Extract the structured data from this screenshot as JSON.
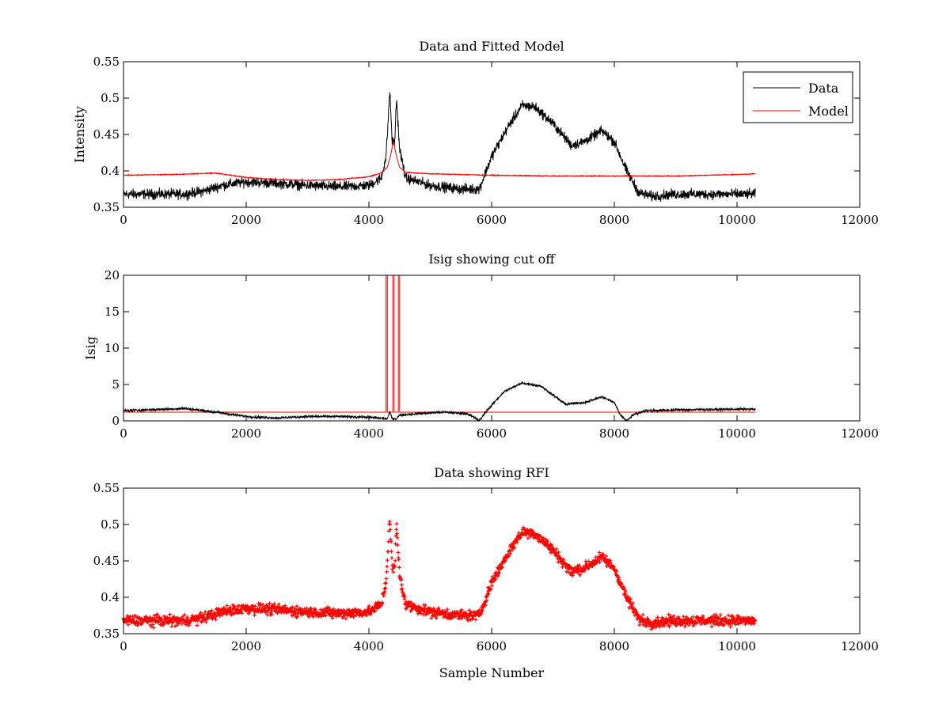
{
  "chart_data": [
    {
      "type": "line",
      "title": "Data and Fitted Model",
      "xlabel": "",
      "ylabel": "Intensity",
      "xlim": [
        0,
        12000
      ],
      "ylim": [
        0.35,
        0.55
      ],
      "xticks": [
        0,
        2000,
        4000,
        6000,
        8000,
        10000,
        12000
      ],
      "yticks": [
        0.35,
        0.4,
        0.45,
        0.5,
        0.55
      ],
      "grid": false,
      "legend_position": "top-right",
      "series": [
        {
          "name": "Data",
          "color": "#000000",
          "style": "line",
          "noise": 0.006,
          "x": [
            0,
            500,
            1000,
            1300,
            1600,
            2000,
            2500,
            3000,
            3500,
            4000,
            4200,
            4280,
            4340,
            4380,
            4420,
            4450,
            4500,
            4600,
            5000,
            5500,
            5800,
            6000,
            6300,
            6500,
            6700,
            7000,
            7300,
            7500,
            7800,
            8000,
            8200,
            8400,
            8600,
            9000,
            9500,
            10000,
            10300
          ],
          "y": [
            0.368,
            0.368,
            0.368,
            0.372,
            0.38,
            0.385,
            0.383,
            0.38,
            0.378,
            0.38,
            0.39,
            0.42,
            0.51,
            0.44,
            0.44,
            0.5,
            0.43,
            0.39,
            0.38,
            0.375,
            0.375,
            0.42,
            0.465,
            0.49,
            0.488,
            0.465,
            0.435,
            0.44,
            0.455,
            0.44,
            0.4,
            0.37,
            0.365,
            0.368,
            0.368,
            0.368,
            0.368
          ]
        },
        {
          "name": "Model",
          "color": "#ff0000",
          "style": "line",
          "noise": 0.0005,
          "x": [
            0,
            800,
            1500,
            2000,
            2500,
            3000,
            3500,
            4000,
            4200,
            4300,
            4350,
            4400,
            4450,
            4500,
            4600,
            5000,
            5500,
            6000,
            7000,
            8000,
            9000,
            10000,
            10300
          ],
          "y": [
            0.394,
            0.395,
            0.397,
            0.391,
            0.388,
            0.387,
            0.388,
            0.392,
            0.397,
            0.405,
            0.42,
            0.44,
            0.42,
            0.405,
            0.398,
            0.396,
            0.395,
            0.394,
            0.393,
            0.393,
            0.393,
            0.395,
            0.396
          ]
        }
      ]
    },
    {
      "type": "line",
      "title": "Isig showing cut off",
      "xlabel": "",
      "ylabel": "Isig",
      "xlim": [
        0,
        12000
      ],
      "ylim": [
        0,
        20
      ],
      "xticks": [
        0,
        2000,
        4000,
        6000,
        8000,
        10000,
        12000
      ],
      "yticks": [
        0,
        5,
        10,
        15,
        20
      ],
      "grid": false,
      "series": [
        {
          "color": "#ff0000",
          "style": "line",
          "noise": 0,
          "x": [
            0,
            4280,
            4280,
            4300,
            4300,
            4390,
            4390,
            4410,
            4410,
            4480,
            4480,
            4500,
            4500,
            10300
          ],
          "y": [
            1.2,
            1.2,
            20,
            20,
            1.2,
            1.2,
            20,
            20,
            1.2,
            1.2,
            20,
            20,
            1.2,
            1.2
          ]
        },
        {
          "color": "#000000",
          "style": "line",
          "noise": 0.15,
          "x": [
            0,
            1000,
            1500,
            2000,
            2500,
            3000,
            3500,
            4000,
            4300,
            4340,
            4380,
            4450,
            4500,
            4800,
            5200,
            5600,
            5750,
            5800,
            5900,
            6200,
            6500,
            6800,
            7200,
            7500,
            7800,
            8000,
            8100,
            8200,
            8300,
            8500,
            9000,
            10000,
            10300
          ],
          "y": [
            1.4,
            1.7,
            1.2,
            0.6,
            0.4,
            0.6,
            0.6,
            0.5,
            0.3,
            1.2,
            0.3,
            0.3,
            0.8,
            1.0,
            1.2,
            1.0,
            0.3,
            0.0,
            1.2,
            4.0,
            5.2,
            4.8,
            2.3,
            2.5,
            3.3,
            2.5,
            0.8,
            0.0,
            0.8,
            1.4,
            1.5,
            1.6,
            1.6
          ]
        }
      ]
    },
    {
      "type": "scatter",
      "title": "Data showing RFI",
      "xlabel": "Sample Number",
      "ylabel": "",
      "xlim": [
        0,
        12000
      ],
      "ylim": [
        0.35,
        0.55
      ],
      "xticks": [
        0,
        2000,
        4000,
        6000,
        8000,
        10000,
        12000
      ],
      "yticks": [
        0.35,
        0.4,
        0.45,
        0.5,
        0.55
      ],
      "grid": false,
      "series": [
        {
          "color": "#ff0000",
          "style": "markers",
          "noise": 0.006,
          "x": [
            0,
            500,
            1000,
            1300,
            1600,
            2000,
            2500,
            3000,
            3500,
            4000,
            4200,
            4280,
            4340,
            4380,
            4420,
            4450,
            4500,
            4600,
            5000,
            5500,
            5800,
            6000,
            6300,
            6500,
            6700,
            7000,
            7300,
            7500,
            7800,
            8000,
            8200,
            8400,
            8600,
            9000,
            9500,
            10000,
            10300
          ],
          "y": [
            0.368,
            0.368,
            0.368,
            0.372,
            0.38,
            0.385,
            0.383,
            0.38,
            0.378,
            0.38,
            0.39,
            0.42,
            0.51,
            0.44,
            0.44,
            0.5,
            0.43,
            0.39,
            0.38,
            0.375,
            0.375,
            0.42,
            0.465,
            0.49,
            0.488,
            0.465,
            0.435,
            0.44,
            0.455,
            0.44,
            0.4,
            0.37,
            0.365,
            0.368,
            0.368,
            0.368,
            0.368
          ]
        }
      ]
    }
  ]
}
